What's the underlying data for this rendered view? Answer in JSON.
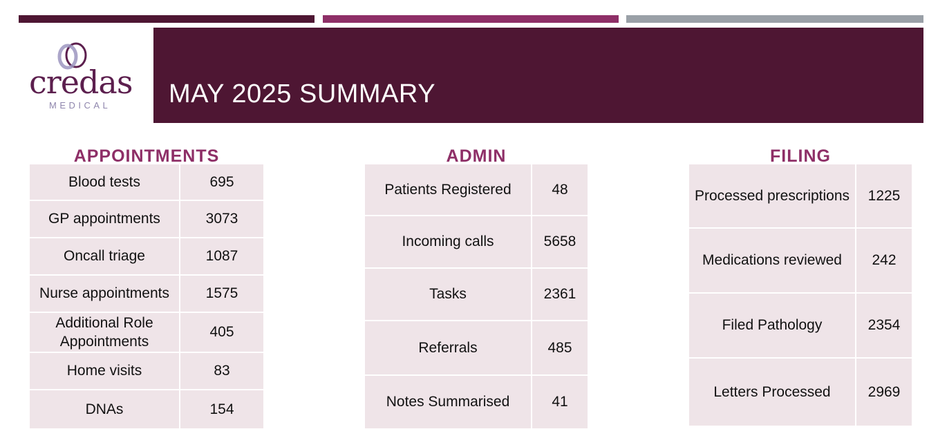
{
  "header": {
    "title": "MAY 2025 SUMMARY",
    "logo_word": "credas",
    "logo_sub": "MEDICAL"
  },
  "sections": [
    {
      "heading": "APPOINTMENTS",
      "rows": [
        {
          "label": "Blood tests",
          "value": "695"
        },
        {
          "label": "GP appointments",
          "value": "3073"
        },
        {
          "label": "Oncall triage",
          "value": "1087"
        },
        {
          "label": "Nurse appointments",
          "value": "1575"
        },
        {
          "label": "Additional Role Appointments",
          "value": "405"
        },
        {
          "label": "Home visits",
          "value": "83"
        },
        {
          "label": "DNAs",
          "value": "154"
        }
      ]
    },
    {
      "heading": "ADMIN",
      "rows": [
        {
          "label": "Patients Registered",
          "value": "48"
        },
        {
          "label": "Incoming calls",
          "value": "5658"
        },
        {
          "label": "Tasks",
          "value": "2361"
        },
        {
          "label": "Referrals",
          "value": "485"
        },
        {
          "label": "Notes Summarised",
          "value": "41"
        }
      ]
    },
    {
      "heading": "FILING",
      "rows": [
        {
          "label": "Processed prescriptions",
          "value": "1225"
        },
        {
          "label": "Medications reviewed",
          "value": "242"
        },
        {
          "label": "Filed Pathology",
          "value": "2354"
        },
        {
          "label": "Letters Processed",
          "value": "2969"
        }
      ]
    }
  ],
  "colors": {
    "brand_dark": "#4e1633",
    "brand_accent": "#8e2f67",
    "grey_bar": "#9aa0a7",
    "cell_bg": "#efe4e8",
    "logo_lavender": "#8f86ad"
  }
}
